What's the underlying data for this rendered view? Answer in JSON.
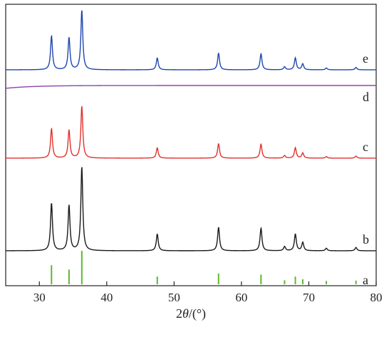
{
  "chart_data": {
    "type": "line",
    "xlabel_parts": {
      "pre": "2",
      "theta": "θ",
      "post": "/(°)"
    },
    "xlim": [
      25,
      80
    ],
    "xticks": [
      30,
      40,
      50,
      60,
      70,
      80
    ],
    "grid": false,
    "legend": "none",
    "peak_positions": [
      31.8,
      34.4,
      36.3,
      47.5,
      56.6,
      62.9,
      66.4,
      68.0,
      69.1,
      72.6,
      77.0
    ],
    "peak_intensities": [
      0.57,
      0.54,
      1.0,
      0.2,
      0.28,
      0.27,
      0.05,
      0.2,
      0.1,
      0.03,
      0.04
    ],
    "reference": {
      "name": "a",
      "color": "#5cb82e",
      "positions": [
        31.8,
        34.4,
        36.3,
        47.5,
        56.6,
        62.9,
        66.4,
        68.0,
        69.1,
        72.6,
        77.0
      ],
      "intensities": [
        0.57,
        0.44,
        1.0,
        0.23,
        0.32,
        0.29,
        0.12,
        0.23,
        0.15,
        0.1,
        0.11
      ]
    },
    "series": [
      {
        "name": "b",
        "color": "#1a1a1a",
        "style": "peaks",
        "scale": 1.0
      },
      {
        "name": "c",
        "color": "#e0322e",
        "style": "peaks",
        "scale": 0.62
      },
      {
        "name": "d",
        "color": "#8e44ad",
        "style": "flat",
        "scale": 0
      },
      {
        "name": "e",
        "color": "#1f46b0",
        "style": "peaks",
        "scale": 0.71
      }
    ]
  }
}
